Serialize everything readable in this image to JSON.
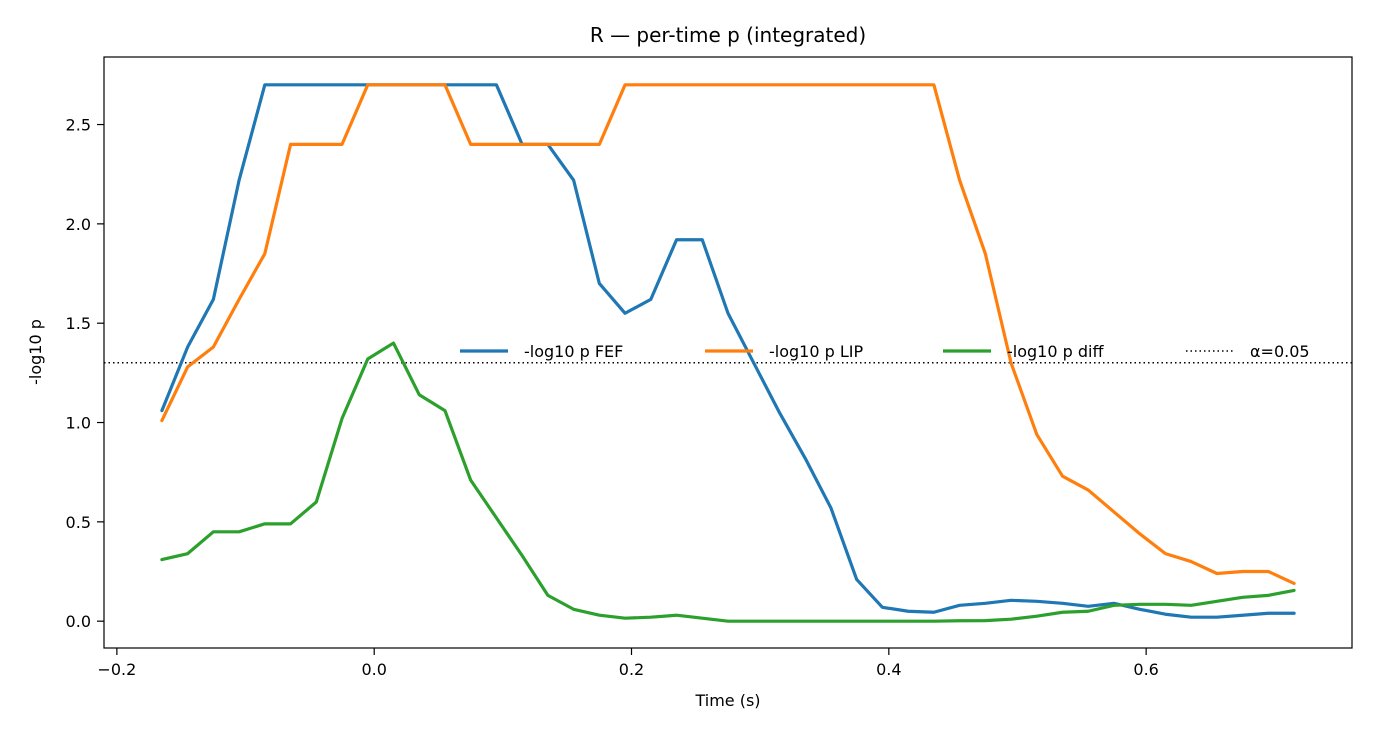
{
  "chart_data": {
    "type": "line",
    "title": "R — per-time p (integrated)",
    "xlabel": "Time (s)",
    "ylabel": "-log10 p",
    "xlim": [
      -0.21,
      0.76
    ],
    "ylim": [
      -0.135,
      2.84
    ],
    "xticks": [
      -0.2,
      0.0,
      0.2,
      0.4,
      0.6
    ],
    "xtick_labels": [
      "−0.2",
      "0.0",
      "0.2",
      "0.4",
      "0.6"
    ],
    "yticks": [
      0.0,
      0.5,
      1.0,
      1.5,
      2.0,
      2.5
    ],
    "ytick_labels": [
      "0.0",
      "0.5",
      "1.0",
      "1.5",
      "2.0",
      "2.5"
    ],
    "grid": false,
    "legend_placement": "center-right",
    "x": [
      -0.165,
      -0.145,
      -0.125,
      -0.105,
      -0.085,
      -0.065,
      -0.045,
      -0.025,
      -0.005,
      0.015,
      0.035,
      0.055,
      0.075,
      0.095,
      0.115,
      0.135,
      0.155,
      0.175,
      0.195,
      0.215,
      0.235,
      0.255,
      0.275,
      0.295,
      0.315,
      0.335,
      0.355,
      0.375,
      0.395,
      0.415,
      0.435,
      0.455,
      0.475,
      0.495,
      0.515,
      0.535,
      0.555,
      0.575,
      0.595,
      0.615,
      0.635,
      0.655,
      0.675,
      0.695,
      0.715
    ],
    "series": [
      {
        "name": "-log10 p FEF",
        "color": "#1f77b4",
        "style": "solid",
        "values": [
          1.06,
          1.38,
          1.62,
          2.22,
          2.7,
          2.7,
          2.7,
          2.7,
          2.7,
          2.7,
          2.7,
          2.7,
          2.7,
          2.7,
          2.4,
          2.4,
          2.22,
          1.7,
          1.55,
          1.62,
          1.92,
          1.92,
          1.55,
          1.3,
          1.05,
          0.82,
          0.57,
          0.21,
          0.07,
          0.05,
          0.045,
          0.08,
          0.09,
          0.105,
          0.1,
          0.09,
          0.075,
          0.09,
          0.06,
          0.035,
          0.02,
          0.02,
          0.03,
          0.04,
          0.04
        ]
      },
      {
        "name": "-log10 p LIP",
        "color": "#ff7f0e",
        "style": "solid",
        "values": [
          1.01,
          1.28,
          1.38,
          1.62,
          1.85,
          2.4,
          2.4,
          2.4,
          2.7,
          2.7,
          2.7,
          2.7,
          2.4,
          2.4,
          2.4,
          2.4,
          2.4,
          2.4,
          2.7,
          2.7,
          2.7,
          2.7,
          2.7,
          2.7,
          2.7,
          2.7,
          2.7,
          2.7,
          2.7,
          2.7,
          2.7,
          2.22,
          1.85,
          1.3,
          0.94,
          0.73,
          0.66,
          0.55,
          0.44,
          0.34,
          0.3,
          0.24,
          0.25,
          0.25,
          0.19
        ]
      },
      {
        "name": "-log10 p diff",
        "color": "#2ca02c",
        "style": "solid",
        "values": [
          0.31,
          0.34,
          0.45,
          0.45,
          0.49,
          0.49,
          0.6,
          1.02,
          1.32,
          1.4,
          1.14,
          1.06,
          0.71,
          0.52,
          0.33,
          0.13,
          0.06,
          0.03,
          0.015,
          0.02,
          0.03,
          0.015,
          0.0,
          0.0,
          0.0,
          0.0,
          0.0,
          0.0,
          0.0,
          0.0,
          0.0,
          0.002,
          0.003,
          0.01,
          0.025,
          0.045,
          0.05,
          0.08,
          0.085,
          0.085,
          0.08,
          0.1,
          0.12,
          0.13,
          0.155
        ]
      }
    ],
    "reference_lines": [
      {
        "name": "α=0.05",
        "y": 1.301,
        "color": "#000000",
        "style": "dotted"
      }
    ]
  }
}
